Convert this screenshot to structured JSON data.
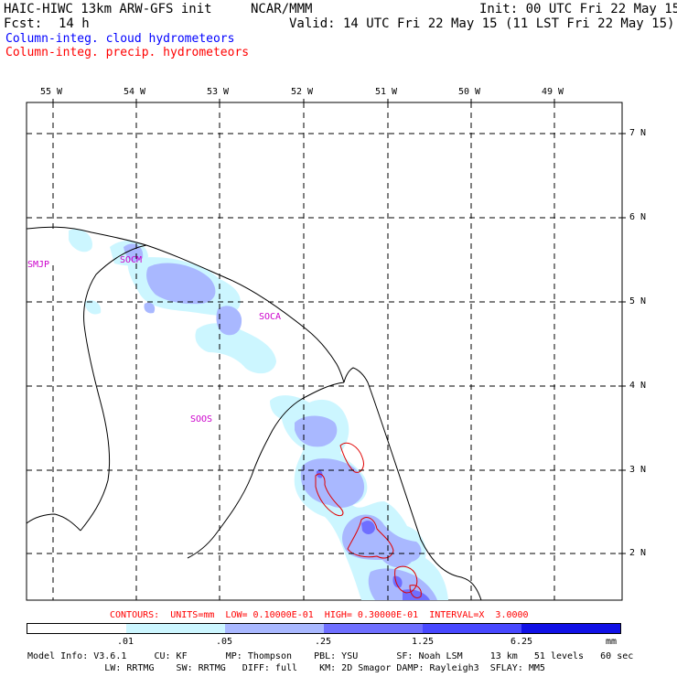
{
  "header": {
    "model": "HAIC-HIWC 13km ARW-GFS init",
    "org": "NCAR/MMM",
    "init": "Init: 00 UTC Fri 22 May 15",
    "fcst_label": "Fcst:",
    "fcst_value": "14 h",
    "valid": "Valid: 14 UTC Fri 22 May 15 (11 LST Fri 22 May 15)"
  },
  "fields": [
    {
      "label": "Column-integ. cloud hydrometeors",
      "color": "#0000ff"
    },
    {
      "label": "Column-integ. precip. hydrometeors",
      "color": "#ff0000"
    }
  ],
  "axes": {
    "lon_labels": [
      "55 W",
      "54 W",
      "53 W",
      "52 W",
      "51 W",
      "50 W",
      "49 W"
    ],
    "lat_labels": [
      "7 N",
      "6 N",
      "5 N",
      "4 N",
      "3 N",
      "2 N"
    ]
  },
  "stations": [
    {
      "id": "SMJP",
      "color": "#cc00cc"
    },
    {
      "id": "SOCM",
      "color": "#cc00cc"
    },
    {
      "id": "SOCA",
      "color": "#cc00cc"
    },
    {
      "id": "SOOS",
      "color": "#cc00cc"
    }
  ],
  "contours_line": "CONTOURS:  UNITS=mm  LOW= 0.10000E-01  HIGH= 0.30000E-01  INTERVAL=X  3.0000",
  "legend": {
    "ticks": [
      ".01",
      ".05",
      ".25",
      "1.25",
      "6.25"
    ],
    "unit": "mm",
    "colors": [
      "#ffffff",
      "#ccf6ff",
      "#a9b8ff",
      "#6f6fff",
      "#4848ff",
      "#1010e6"
    ]
  },
  "model_info": {
    "line1": "Model Info: V3.6.1     CU: KF       MP: Thompson    PBL: YSU       SF: Noah LSM     13 km   51 levels   60 sec",
    "line2": "              LW: RRTMG    SW: RRTMG   DIFF: full    KM: 2D Smagor DAMP: Rayleigh3  SFLAY: MM5"
  }
}
